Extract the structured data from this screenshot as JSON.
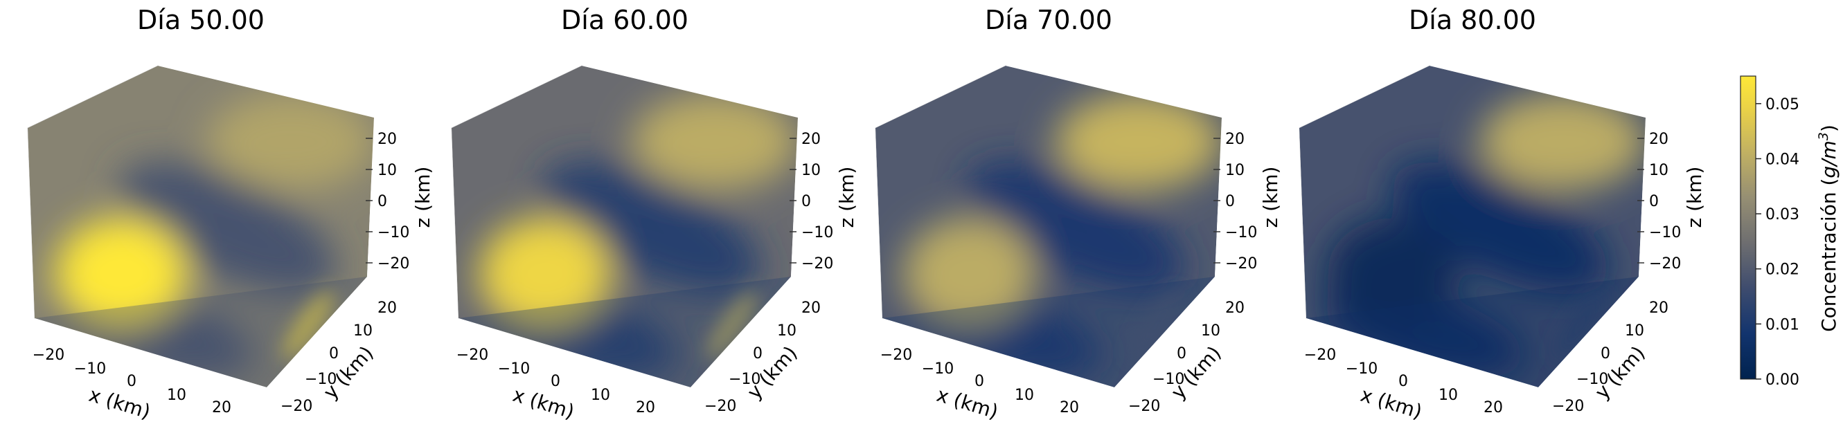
{
  "chart_data": [
    {
      "type": "heatmap",
      "title": "Día 50.00",
      "xlabel": "x (km)",
      "ylabel": "y (km)",
      "zlabel": "z (km)",
      "x_ticks": [
        "−20",
        "−10",
        "0",
        "10",
        "20"
      ],
      "y_ticks": [
        "−20",
        "−10",
        "0",
        "10",
        "20"
      ],
      "z_ticks": [
        "20",
        "10",
        "0",
        "−10",
        "−20"
      ],
      "xlim": [
        -25,
        25
      ],
      "ylim": [
        -25,
        25
      ],
      "zlim": [
        -25,
        25
      ],
      "blobs": [
        {
          "name": "front-left",
          "value": 0.055
        },
        {
          "name": "back-right",
          "value": 0.038
        },
        {
          "name": "side-streak",
          "value": 0.05
        }
      ],
      "background_value": 0.03,
      "dark_band_value": 0.018
    },
    {
      "type": "heatmap",
      "title": "Día 60.00",
      "xlabel": "x (km)",
      "ylabel": "y (km)",
      "zlabel": "z (km)",
      "x_ticks": [
        "−20",
        "−10",
        "0",
        "10",
        "20"
      ],
      "y_ticks": [
        "−20",
        "−10",
        "0",
        "10",
        "20"
      ],
      "z_ticks": [
        "20",
        "10",
        "0",
        "−10",
        "−20"
      ],
      "xlim": [
        -25,
        25
      ],
      "ylim": [
        -25,
        25
      ],
      "zlim": [
        -25,
        25
      ],
      "blobs": [
        {
          "name": "front-left",
          "value": 0.05
        },
        {
          "name": "back-right",
          "value": 0.04
        },
        {
          "name": "side-streak",
          "value": 0.042
        }
      ],
      "background_value": 0.024,
      "dark_band_value": 0.012
    },
    {
      "type": "heatmap",
      "title": "Día 70.00",
      "xlabel": "x (km)",
      "ylabel": "y (km)",
      "zlabel": "z (km)",
      "x_ticks": [
        "−20",
        "−10",
        "0",
        "10",
        "20"
      ],
      "y_ticks": [
        "−20",
        "−10",
        "0",
        "10",
        "20"
      ],
      "z_ticks": [
        "20",
        "10",
        "0",
        "−10",
        "−20"
      ],
      "xlim": [
        -25,
        25
      ],
      "ylim": [
        -25,
        25
      ],
      "zlim": [
        -25,
        25
      ],
      "blobs": [
        {
          "name": "front-left",
          "value": 0.04
        },
        {
          "name": "back-right",
          "value": 0.042
        },
        {
          "name": "side-streak",
          "value": 0.02
        }
      ],
      "background_value": 0.02,
      "dark_band_value": 0.01
    },
    {
      "type": "heatmap",
      "title": "Día 80.00",
      "xlabel": "x (km)",
      "ylabel": "y (km)",
      "zlabel": "z (km)",
      "x_ticks": [
        "−20",
        "−10",
        "0",
        "10",
        "20"
      ],
      "y_ticks": [
        "−20",
        "−10",
        "0",
        "10",
        "20"
      ],
      "z_ticks": [
        "20",
        "10",
        "0",
        "−10",
        "−20"
      ],
      "xlim": [
        -25,
        25
      ],
      "ylim": [
        -25,
        25
      ],
      "zlim": [
        -25,
        25
      ],
      "blobs": [
        {
          "name": "front-left",
          "value": 0.003
        },
        {
          "name": "back-right",
          "value": 0.04
        },
        {
          "name": "side-streak",
          "value": 0.015
        }
      ],
      "background_value": 0.018,
      "dark_band_value": 0.006
    }
  ],
  "colorbar": {
    "label": "Concentración (g/m³)",
    "label_main": "Concentración (",
    "label_unit": "g/m",
    "label_exp": "3",
    "label_close": ")",
    "ticks": [
      "0.00",
      "0.01",
      "0.02",
      "0.03",
      "0.04",
      "0.05"
    ],
    "tick_values": [
      0.0,
      0.01,
      0.02,
      0.03,
      0.04,
      0.05
    ],
    "min": 0.0,
    "max": 0.055,
    "colormap": "cividis",
    "color_low": "#00224e",
    "color_mid": "#7c7b78",
    "color_high": "#fee838"
  }
}
